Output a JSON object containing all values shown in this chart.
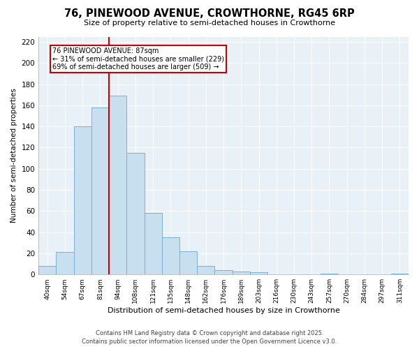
{
  "title": "76, PINEWOOD AVENUE, CROWTHORNE, RG45 6RP",
  "subtitle": "Size of property relative to semi-detached houses in Crowthorne",
  "xlabel": "Distribution of semi-detached houses by size in Crowthorne",
  "ylabel": "Number of semi-detached properties",
  "bin_labels": [
    "40sqm",
    "54sqm",
    "67sqm",
    "81sqm",
    "94sqm",
    "108sqm",
    "121sqm",
    "135sqm",
    "148sqm",
    "162sqm",
    "176sqm",
    "189sqm",
    "203sqm",
    "216sqm",
    "230sqm",
    "243sqm",
    "257sqm",
    "270sqm",
    "284sqm",
    "297sqm",
    "311sqm"
  ],
  "bar_heights": [
    8,
    21,
    140,
    158,
    169,
    115,
    58,
    35,
    22,
    8,
    4,
    3,
    2,
    0,
    0,
    0,
    1,
    0,
    0,
    0,
    1
  ],
  "bar_color": "#c8dff0",
  "bar_edge_color": "#7ab0d4",
  "vline_color": "#cc0000",
  "annotation_title": "76 PINEWOOD AVENUE: 87sqm",
  "annotation_line1": "← 31% of semi-detached houses are smaller (229)",
  "annotation_line2": "69% of semi-detached houses are larger (509) →",
  "ylim": [
    0,
    225
  ],
  "yticks": [
    0,
    20,
    40,
    60,
    80,
    100,
    120,
    140,
    160,
    180,
    200,
    220
  ],
  "footer1": "Contains HM Land Registry data © Crown copyright and database right 2025.",
  "footer2": "Contains public sector information licensed under the Open Government Licence v3.0.",
  "bg_color": "#ffffff",
  "plot_bg_color": "#e8f0f8"
}
